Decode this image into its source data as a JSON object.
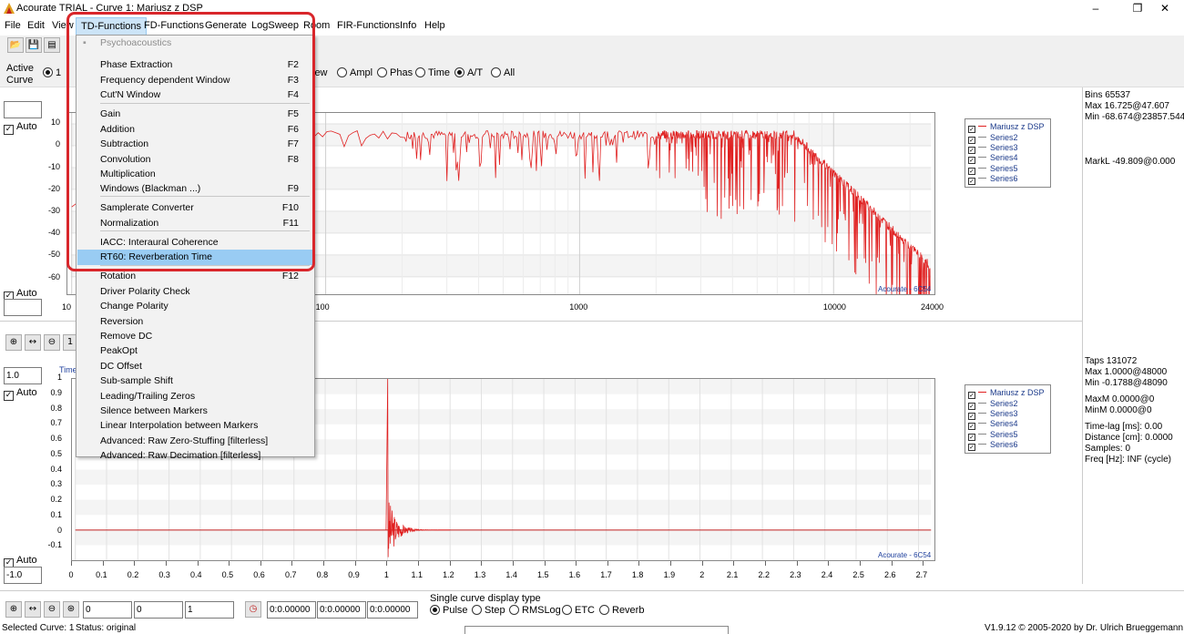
{
  "window": {
    "title": "Acourate TRIAL - Curve 1: Mariusz z DSP",
    "minimize": "–",
    "maximize": "❐",
    "close": "✕"
  },
  "menubar": [
    {
      "id": "file",
      "label": "File"
    },
    {
      "id": "edit",
      "label": "Edit"
    },
    {
      "id": "view",
      "label": "View"
    },
    {
      "id": "td",
      "label": "TD-Functions"
    },
    {
      "id": "fd",
      "label": "FD-Functions"
    },
    {
      "id": "gen",
      "label": "Generate"
    },
    {
      "id": "logsweep",
      "label": "LogSweep"
    },
    {
      "id": "room",
      "label": "Room"
    },
    {
      "id": "fir",
      "label": "FIR-Functions"
    },
    {
      "id": "info",
      "label": "Info"
    },
    {
      "id": "help",
      "label": "Help"
    }
  ],
  "active_curve": {
    "label_line1": "Active",
    "label_line2": "Curve",
    "selected": "1",
    "view_suffix": "iew"
  },
  "view_modes": [
    {
      "label": "Ampl",
      "checked": false
    },
    {
      "label": "Phas",
      "checked": false
    },
    {
      "label": "Time",
      "checked": false
    },
    {
      "label": "A/T",
      "checked": true
    },
    {
      "label": "All",
      "checked": false
    }
  ],
  "top_plot": {
    "auto_label": "Auto",
    "yticks": [
      "10",
      "0",
      "-10",
      "-20",
      "-30",
      "-40",
      "-50",
      "-60"
    ],
    "xticks": [
      "10",
      "100",
      "1000",
      "10000",
      "24000"
    ],
    "watermark": "Acourate - 6C54",
    "line_color": "#e02020"
  },
  "bottom_plot": {
    "auto_label": "Auto",
    "top_value": "1.0",
    "bottom_value": "-1.0",
    "time_label": "Time",
    "yticks": [
      "1",
      "0.9",
      "0.8",
      "0.7",
      "0.6",
      "0.5",
      "0.4",
      "0.3",
      "0.2",
      "0.1",
      "0",
      "-0.1"
    ],
    "xticks": [
      "0",
      "0.1",
      "0.2",
      "0.3",
      "0.4",
      "0.5",
      "0.6",
      "0.7",
      "0.8",
      "0.9",
      "1",
      "1.1",
      "1.2",
      "1.3",
      "1.4",
      "1.5",
      "1.6",
      "1.7",
      "1.8",
      "1.9",
      "2",
      "2.1",
      "2.2",
      "2.3",
      "2.4",
      "2.5",
      "2.6",
      "2.7"
    ],
    "watermark": "Acourate - 6C54",
    "zoom_value": "1"
  },
  "legend": [
    "Mariusz z DSP",
    "Series2",
    "Series3",
    "Series4",
    "Series5",
    "Series6"
  ],
  "top_info": {
    "bins": "Bins 65537",
    "max": "Max 16.725@47.607",
    "min": "Min -68.674@23857.544",
    "markl": "MarkL -49.809@0.000"
  },
  "bottom_info": {
    "taps": "Taps 131072",
    "max": "Max 1.0000@48000",
    "min": "Min -0.1788@48090",
    "maxm": "MaxM 0.0000@0",
    "minm": "MinM 0.0000@0",
    "timelag": "Time-lag [ms]: 0.00",
    "distance": "Distance [cm]: 0.0000",
    "samples": "Samples:  0",
    "freq": "Freq [Hz]: INF (cycle)"
  },
  "bottom_controls": {
    "field1": "0",
    "field2": "0",
    "field3": "1",
    "time1": "0:0.00000",
    "time2": "0:0.00000",
    "time3": "0:0.00000",
    "display_type_title": "Single curve display type",
    "display_types": [
      {
        "label": "Pulse",
        "checked": true
      },
      {
        "label": "Step",
        "checked": false
      },
      {
        "label": "RMSLog",
        "checked": false
      },
      {
        "label": "ETC",
        "checked": false
      },
      {
        "label": "Reverb",
        "checked": false
      }
    ]
  },
  "status": {
    "selected": "Selected Curve: 1",
    "status": "Status: original",
    "version": "V1.9.12 © 2005-2020 by Dr. Ulrich Brueggemann"
  },
  "td_menu": {
    "header": "Psychoacoustics",
    "items": [
      {
        "label": "Phase Extraction",
        "key": "F2"
      },
      {
        "label": "Frequency dependent Window",
        "key": "F3"
      },
      {
        "label": "Cut'N Window",
        "key": "F4"
      },
      {
        "label": "Gain",
        "key": "F5"
      },
      {
        "label": "Addition",
        "key": "F6"
      },
      {
        "label": "Subtraction",
        "key": "F7"
      },
      {
        "label": "Convolution",
        "key": "F8"
      },
      {
        "label": "Multiplication",
        "key": ""
      },
      {
        "label": "Windows (Blackman ...)",
        "key": "F9"
      },
      {
        "label": "Samplerate Converter",
        "key": "F10"
      },
      {
        "label": "Normalization",
        "key": "F11"
      },
      {
        "label": "IACC: Interaural Coherence",
        "key": ""
      },
      {
        "label": "RT60: Reverberation Time",
        "key": ""
      },
      {
        "label": "Rotation",
        "key": "F12"
      },
      {
        "label": "Driver Polarity Check",
        "key": ""
      },
      {
        "label": "Change Polarity",
        "key": ""
      },
      {
        "label": "Reversion",
        "key": ""
      },
      {
        "label": "Remove DC",
        "key": ""
      },
      {
        "label": "PeakOpt",
        "key": ""
      },
      {
        "label": "DC Offset",
        "key": ""
      },
      {
        "label": "Sub-sample Shift",
        "key": ""
      },
      {
        "label": "Leading/Trailing Zeros",
        "key": ""
      },
      {
        "label": "Silence between Markers",
        "key": ""
      },
      {
        "label": "Linear Interpolation between Markers",
        "key": ""
      },
      {
        "label": "Advanced: Raw Zero-Stuffing [filterless]",
        "key": ""
      },
      {
        "label": "Advanced: Raw Decimation  [filterless]",
        "key": ""
      }
    ],
    "selected_label": "RT60: Reverberation Time"
  },
  "annotation_color": "#d9262b"
}
